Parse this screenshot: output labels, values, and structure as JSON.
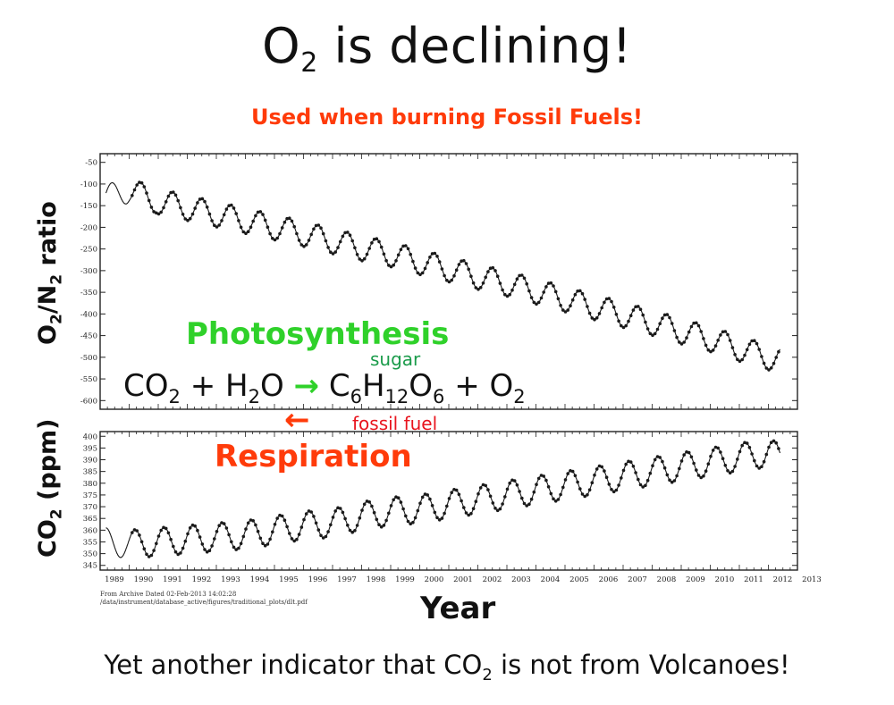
{
  "title": {
    "pre": "O",
    "sub": "2",
    "post": " is declining!"
  },
  "subtitle": "Used when burning Fossil Fuels!",
  "equation": {
    "photosynthesis": "Photosynthesis",
    "sugar": "sugar",
    "fossil_fuel": "fossil fuel",
    "respiration": "Respiration",
    "forward_arrow": "→",
    "backward_arrow": "←",
    "parts": [
      {
        "t": "CO"
      },
      {
        "s": "2"
      },
      {
        "t": " + H"
      },
      {
        "s": "2"
      },
      {
        "t": "O "
      },
      {
        "a": "→"
      },
      {
        "t": " C"
      },
      {
        "s": "6"
      },
      {
        "t": "H"
      },
      {
        "s": "12"
      },
      {
        "t": "O"
      },
      {
        "s": "6"
      },
      {
        "t": " + O"
      },
      {
        "s": "2"
      }
    ]
  },
  "archive_note": {
    "line1": "From Archive Dated 02-Feb-2013 14:02:28",
    "line2": "/data/instrument/database_active/figures/traditional_plots/dlt.pdf"
  },
  "caption": {
    "pre": "Yet another indicator that CO",
    "sub": "2",
    "post": " is not from Volcanoes!"
  },
  "colors": {
    "title_red": "#ff3b0a",
    "photosynthesis_green": "#2fd12a",
    "sugar_green": "#1a9b4a",
    "fossil_red": "#e8141e",
    "data": "#1a1a1a"
  },
  "chart_data": [
    {
      "type": "line",
      "name": "o2",
      "ylabel": {
        "pre": "O",
        "sub1": "2",
        "mid": "/N",
        "sub2": "2",
        "post": " ratio"
      },
      "xlabel": "Year",
      "xlim": [
        1989,
        2013
      ],
      "ylim": [
        -620,
        -30
      ],
      "yticks": [
        -50,
        -100,
        -150,
        -200,
        -250,
        -300,
        -350,
        -400,
        -450,
        -500,
        -550,
        -600
      ],
      "ytick_labels": [
        "-50",
        "-100",
        "-150",
        "-200",
        "-250",
        "-300",
        "-350",
        "-400",
        "-450",
        "-500",
        "-550",
        "-600"
      ],
      "grid": false,
      "seasonal_amplitude": 58,
      "peak_years": [
        1990.4,
        1991.5,
        1992.5,
        1993.5,
        1994.5,
        1995.5,
        1996.5,
        1997.5,
        1998.5,
        1999.5,
        2000.5,
        2001.5,
        2002.5,
        2003.5,
        2004.5,
        2005.5,
        2006.5,
        2007.5,
        2008.5,
        2009.5,
        2010.5,
        2011.5
      ],
      "series": [
        {
          "x": [
            1989.2,
            1990.0,
            1991.0,
            1992.0,
            1993.0,
            1994.0,
            1995.0,
            1996.0,
            1997.0,
            1998.0,
            1999.0,
            2000.0,
            2001.0,
            2002.0,
            2003.0,
            2004.0,
            2005.0,
            2006.0,
            2007.0,
            2008.0,
            2009.0,
            2010.0,
            2011.0,
            2012.0,
            2012.4
          ],
          "y": [
            -130,
            -115,
            -140,
            -155,
            -170,
            -185,
            -200,
            -215,
            -232,
            -248,
            -262,
            -280,
            -297,
            -314,
            -330,
            -348,
            -366,
            -384,
            -402,
            -420,
            -440,
            -458,
            -480,
            -500,
            -505
          ]
        }
      ]
    },
    {
      "type": "line",
      "name": "co2",
      "ylabel": {
        "pre": "CO",
        "sub1": "2",
        "post": " (ppm)"
      },
      "xlabel": "Year",
      "xlim": [
        1989,
        2013
      ],
      "ylim": [
        343,
        402
      ],
      "yticks": [
        345,
        350,
        355,
        360,
        365,
        370,
        375,
        380,
        385,
        390,
        395,
        400
      ],
      "ytick_labels": [
        "345",
        "350",
        "355",
        "360",
        "365",
        "370",
        "375",
        "380",
        "385",
        "390",
        "395",
        "400"
      ],
      "grid": false,
      "seasonal_amplitude": 12,
      "trough_years": [
        1990.7,
        1991.7,
        1992.7,
        1993.7,
        1994.7,
        1995.7,
        1996.7,
        1997.7,
        1998.7,
        1999.7,
        2000.7,
        2001.7,
        2002.7,
        2003.7,
        2004.7,
        2005.7,
        2006.7,
        2007.7,
        2008.7,
        2009.7,
        2010.7,
        2011.7
      ],
      "series": [
        {
          "x": [
            1989.2,
            1990.0,
            1991.0,
            1992.0,
            1993.0,
            1994.0,
            1995.0,
            1996.0,
            1997.0,
            1998.0,
            1999.0,
            2000.0,
            2001.0,
            2002.0,
            2003.0,
            2004.0,
            2005.0,
            2006.0,
            2007.0,
            2008.0,
            2009.0,
            2010.0,
            2011.0,
            2012.0,
            2012.4
          ],
          "y": [
            355,
            354,
            355,
            356,
            357,
            358,
            360,
            362,
            363,
            366,
            368,
            369,
            371,
            373,
            375,
            377,
            379,
            381,
            383,
            385,
            387,
            389,
            391,
            393,
            391
          ]
        }
      ]
    }
  ],
  "xticks": [
    1989,
    1990,
    1991,
    1992,
    1993,
    1994,
    1995,
    1996,
    1997,
    1998,
    1999,
    2000,
    2001,
    2002,
    2003,
    2004,
    2005,
    2006,
    2007,
    2008,
    2009,
    2010,
    2011,
    2012,
    2013
  ],
  "xtick_labels": [
    "1989",
    "1990",
    "1991",
    "1992",
    "1993",
    "1994",
    "1995",
    "1996",
    "1997",
    "1998",
    "1999",
    "2000",
    "2001",
    "2002",
    "2003",
    "2004",
    "2005",
    "2006",
    "2007",
    "2008",
    "2009",
    "2010",
    "2011",
    "2012",
    "2013"
  ]
}
